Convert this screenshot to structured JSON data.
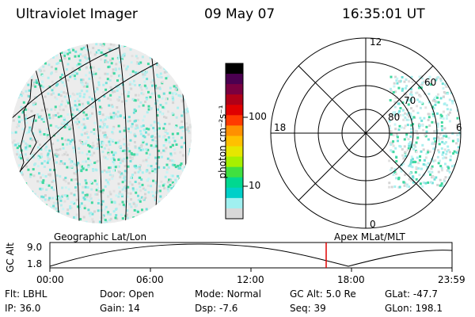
{
  "header": {
    "instrument": "Ultraviolet Imager",
    "date": "09 May 07",
    "time": "16:35:01 UT"
  },
  "colorbar": {
    "unit_label": "photon cm⁻²s⁻¹",
    "ticks": [
      "100",
      "10"
    ],
    "colors": [
      "#000000",
      "#4b0050",
      "#7a0040",
      "#b00018",
      "#e00000",
      "#ff3a00",
      "#ff9000",
      "#ffc000",
      "#e6e600",
      "#a6f000",
      "#40e040",
      "#00d890",
      "#00d0c8",
      "#a0f0f0",
      "#d8d8d8"
    ]
  },
  "polar": {
    "labels": {
      "top": "12",
      "left": "18",
      "right": "6",
      "bottom": "0"
    },
    "rings": [
      "60",
      "70",
      "80"
    ]
  },
  "timeline": {
    "left_label": "Geographic Lat/Lon",
    "right_label": "Apex MLat/MLT",
    "axis_label": "GC Alt",
    "y_ticks": [
      "9.0",
      "1.8"
    ],
    "x_ticks": [
      "00:00",
      "06:00",
      "12:00",
      "18:00",
      "23:59"
    ],
    "marker_color": "#e00000"
  },
  "info": {
    "row1": [
      {
        "label": "Flt:",
        "value": "LBHL"
      },
      {
        "label": "Door:",
        "value": "Open"
      },
      {
        "label": "Mode:",
        "value": "Normal"
      },
      {
        "label": "GC Alt:",
        "value": "5.0 Re"
      },
      {
        "label": "GLat:",
        "value": "-47.7"
      }
    ],
    "row2": [
      {
        "label": "IP:",
        "value": "36.0"
      },
      {
        "label": "Gain:",
        "value": "14"
      },
      {
        "label": "Dsp:",
        "value": "-7.6"
      },
      {
        "label": "Seq:",
        "value": "39"
      },
      {
        "label": "GLon:",
        "value": "198.1"
      }
    ]
  }
}
